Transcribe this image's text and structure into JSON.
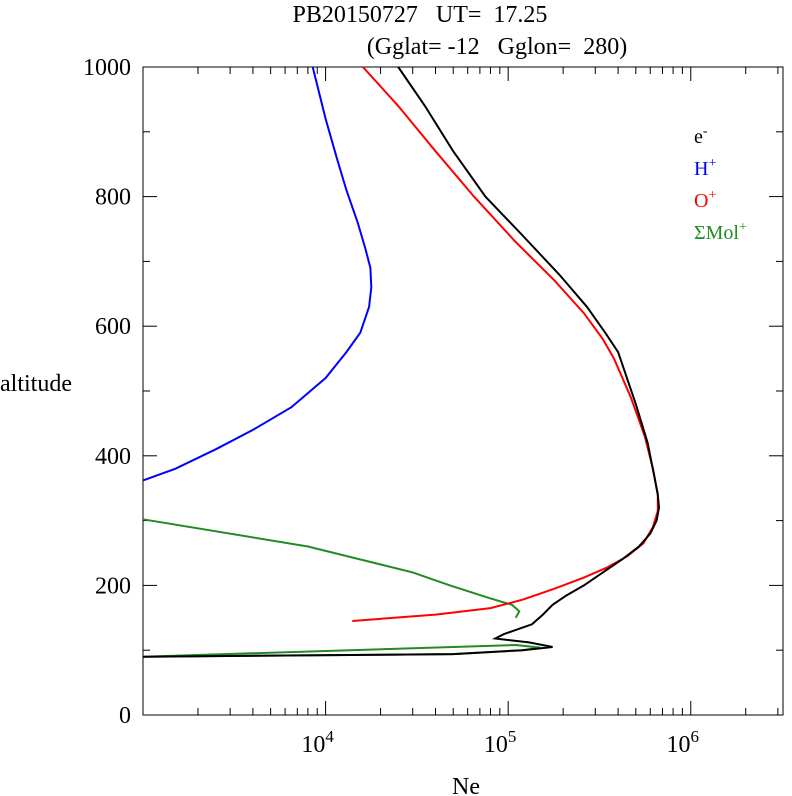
{
  "chart_data": {
    "type": "line",
    "title_line1": "PB20150727   UT=  17.25",
    "title_line2": "(Gglat= -12   Gglon=  280)",
    "xlabel": "Ne",
    "ylabel": "altitude",
    "xscale": "log",
    "xlim": [
      1000,
      3200000
    ],
    "ylim": [
      0,
      1000
    ],
    "y_ticks": [
      "0",
      "200",
      "400",
      "600",
      "800",
      "1000"
    ],
    "x_ticks": [
      {
        "value": 10000,
        "base": "10",
        "exp": "4"
      },
      {
        "value": 100000,
        "base": "10",
        "exp": "5"
      },
      {
        "value": 1000000,
        "base": "10",
        "exp": "6"
      }
    ],
    "legend_position": "top-right",
    "series": [
      {
        "name": "e",
        "name_sup": "-",
        "color": "#000000",
        "points": [
          [
            1000,
            90
          ],
          [
            50000,
            94
          ],
          [
            120000,
            100
          ],
          [
            175000,
            105
          ],
          [
            130000,
            112
          ],
          [
            85000,
            118
          ],
          [
            95000,
            125
          ],
          [
            135000,
            140
          ],
          [
            155000,
            155
          ],
          [
            175000,
            170
          ],
          [
            210000,
            185
          ],
          [
            260000,
            200
          ],
          [
            330000,
            220
          ],
          [
            420000,
            240
          ],
          [
            520000,
            260
          ],
          [
            600000,
            280
          ],
          [
            650000,
            300
          ],
          [
            670000,
            320
          ],
          [
            660000,
            340
          ],
          [
            630000,
            370
          ],
          [
            580000,
            420
          ],
          [
            500000,
            480
          ],
          [
            400000,
            560
          ],
          [
            340000,
            590
          ],
          [
            270000,
            630
          ],
          [
            190000,
            680
          ],
          [
            120000,
            740
          ],
          [
            75000,
            800
          ],
          [
            50000,
            870
          ],
          [
            35000,
            940
          ],
          [
            25000,
            1000
          ]
        ]
      },
      {
        "name": "H",
        "name_sup": "+",
        "color": "#0000ff",
        "points": [
          [
            1000,
            362
          ],
          [
            1500,
            380
          ],
          [
            2500,
            410
          ],
          [
            4000,
            440
          ],
          [
            6500,
            475
          ],
          [
            10000,
            520
          ],
          [
            13000,
            560
          ],
          [
            15500,
            590
          ],
          [
            17300,
            630
          ],
          [
            17800,
            660
          ],
          [
            17600,
            690
          ],
          [
            16500,
            720
          ],
          [
            15000,
            760
          ],
          [
            13000,
            810
          ],
          [
            11500,
            860
          ],
          [
            10000,
            920
          ],
          [
            8500,
            1000
          ]
        ]
      },
      {
        "name": "O",
        "name_sup": "+",
        "color": "#ff0000",
        "points": [
          [
            14000,
            145
          ],
          [
            40000,
            155
          ],
          [
            80000,
            165
          ],
          [
            120000,
            178
          ],
          [
            180000,
            195
          ],
          [
            260000,
            212
          ],
          [
            350000,
            228
          ],
          [
            450000,
            245
          ],
          [
            550000,
            265
          ],
          [
            620000,
            290
          ],
          [
            660000,
            315
          ],
          [
            660000,
            340
          ],
          [
            620000,
            380
          ],
          [
            560000,
            430
          ],
          [
            470000,
            490
          ],
          [
            380000,
            550
          ],
          [
            330000,
            580
          ],
          [
            260000,
            620
          ],
          [
            180000,
            670
          ],
          [
            110000,
            730
          ],
          [
            65000,
            800
          ],
          [
            40000,
            870
          ],
          [
            25000,
            940
          ],
          [
            16000,
            1000
          ]
        ]
      },
      {
        "name": "ΣMol",
        "name_sup": "+",
        "color": "#228b22",
        "points": [
          [
            1000,
            90
          ],
          [
            50000,
            94
          ],
          [
            120000,
            100
          ],
          [
            150000,
            104
          ],
          [
            110000,
            108
          ],
          [
            1000,
            90
          ]
        ],
        "points_upper": [
          [
            1000,
            302
          ],
          [
            8000,
            260
          ],
          [
            30000,
            220
          ],
          [
            48000,
            200
          ],
          [
            80000,
            180
          ],
          [
            105000,
            170
          ],
          [
            115000,
            160
          ],
          [
            110000,
            150
          ]
        ]
      }
    ]
  }
}
